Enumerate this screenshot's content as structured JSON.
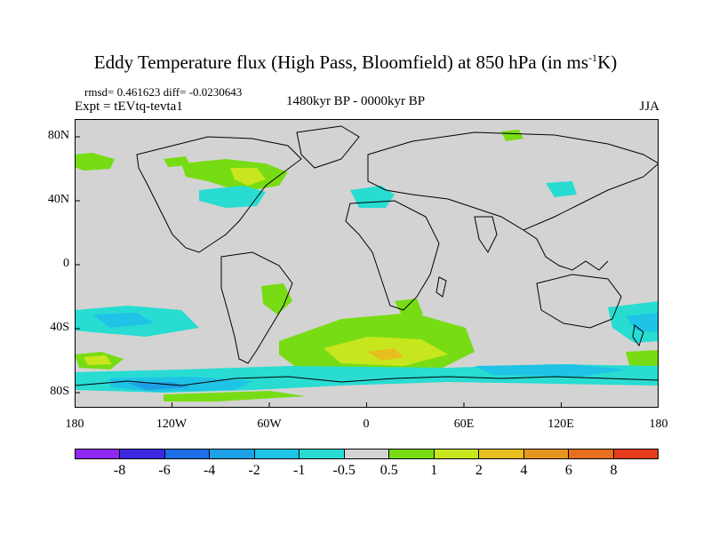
{
  "title": {
    "main": "Eddy Temperature flux (High Pass, Bloomfield) at 850 hPa (in ms",
    "sup": "-1",
    "tail": "K)"
  },
  "stats_line": "rmsd= 0.461623 diff= -0.0230643",
  "expt_line": "Expt = tEVtq-tevta1",
  "period": "1480kyr BP - 0000kyr BP",
  "season": "JJA",
  "lat_labels": [
    "80N",
    "40N",
    "0",
    "40S",
    "80S"
  ],
  "lon_labels": [
    "180",
    "120W",
    "60W",
    "0",
    "60E",
    "120E",
    "180"
  ],
  "colorbar": {
    "labels": [
      "-8",
      "-6",
      "-4",
      "-2",
      "-1",
      "-0.5",
      "0.5",
      "1",
      "2",
      "4",
      "6",
      "8"
    ],
    "colors": [
      "#8f28f0",
      "#3c28e0",
      "#1e6ee6",
      "#1ea0e6",
      "#1ec3e6",
      "#28dcd2",
      "#d3d3d3",
      "#78dc14",
      "#c8e61e",
      "#e6be1e",
      "#e6961e",
      "#e66e1e",
      "#e63c1e"
    ]
  },
  "map": {
    "background": "#d3d3d3",
    "land_outline": "#000000"
  }
}
